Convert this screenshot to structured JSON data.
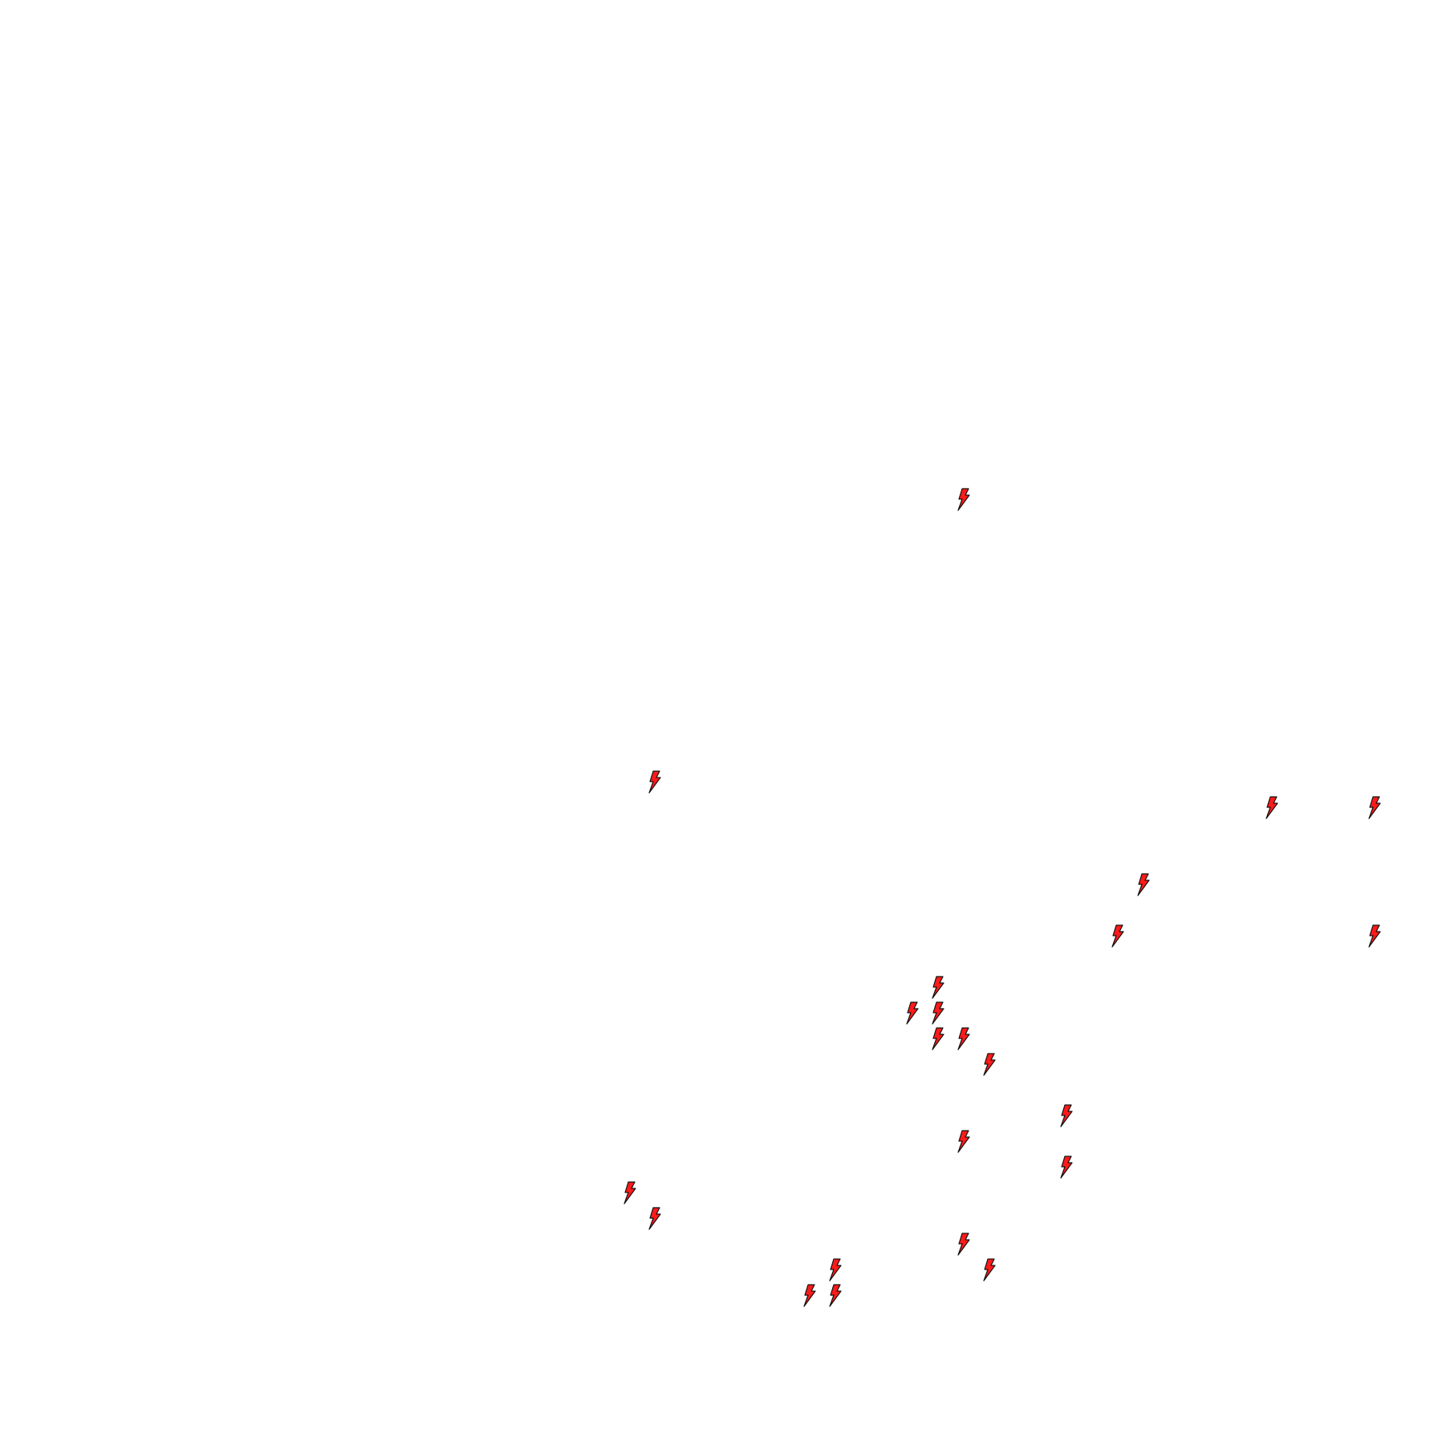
{
  "canvas": {
    "background": "#ffffff"
  },
  "markers": {
    "icon": "lightning-bolt-icon",
    "fill_color": "#ff1a1a",
    "stroke_color": "#111111"
  }
}
